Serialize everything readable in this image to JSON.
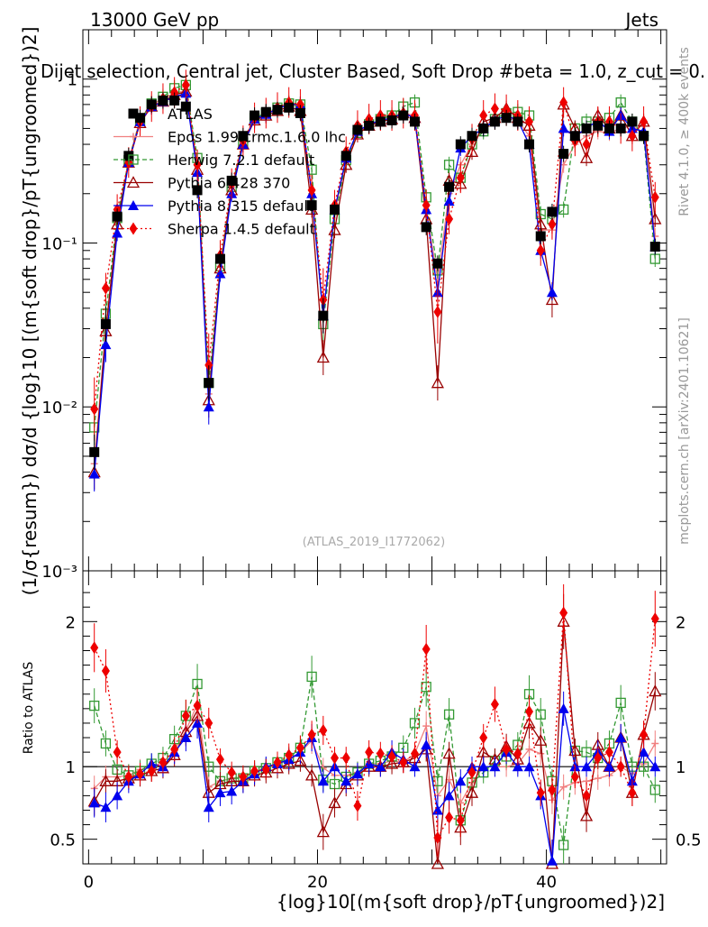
{
  "header": {
    "energy": "13000 GeV pp",
    "category": "Jets",
    "selection_title": "Dijet selection, Central jet, Cluster Based, Soft Drop #beta = 1.0, z_cut = 0.",
    "watermark": "(ATLAS_2019_I1772062)",
    "rivet_tag": "Rivet 4.1.0, ≥ 400k events",
    "site_tag": "mcplots.cern.ch [arXiv:2401.10621]"
  },
  "colors": {
    "atlas": "#000000",
    "epos": "#f08080",
    "herwig": "#339933",
    "pythia6": "#990000",
    "pythia8": "#0000ee",
    "sherpa": "#ee0000"
  },
  "chart_data": [
    {
      "type": "line",
      "title": "Dijet selection, Central jet, Cluster Based, Soft Drop β = 1.0, z_cut = 0.",
      "xlabel": "{log}10[(m^{soft drop}/p_T^{ungroomed})^2]",
      "ylabel": "(1/σ_{resum}) dσ/d {log}10[(m^{soft drop}/p_T^{ungroomed})^2]",
      "xlim": [
        -0.5,
        50.5
      ],
      "ylim": [
        0.001,
        2.0
      ],
      "yscale": "log",
      "yticks": [
        {
          "v": 0.001,
          "label": "10⁻³"
        },
        {
          "v": 0.01,
          "label": "10⁻²"
        },
        {
          "v": 0.1,
          "label": "10⁻¹"
        },
        {
          "v": 1,
          "label": "1"
        }
      ],
      "legend_position": "top-left",
      "x": [
        0.5,
        1.5,
        2.5,
        3.5,
        4.5,
        5.5,
        6.5,
        7.5,
        8.5,
        9.5,
        10.5,
        11.5,
        12.5,
        13.5,
        14.5,
        15.5,
        16.5,
        17.5,
        18.5,
        19.5,
        20.5,
        21.5,
        22.5,
        23.5,
        24.5,
        25.5,
        26.5,
        27.5,
        28.5,
        29.5,
        30.5,
        31.5,
        32.5,
        33.5,
        34.5,
        35.5,
        36.5,
        37.5,
        38.5,
        39.5,
        40.5,
        41.5,
        42.5,
        43.5,
        44.5,
        45.5,
        46.5,
        47.5,
        48.5,
        49.5
      ],
      "series": [
        {
          "name": "ATLAS",
          "style": "square-filled",
          "values": [
            0.0053,
            0.032,
            0.145,
            0.34,
            0.58,
            0.7,
            0.74,
            0.74,
            0.68,
            0.21,
            0.014,
            0.08,
            0.24,
            0.45,
            0.6,
            0.63,
            0.65,
            0.67,
            0.62,
            0.17,
            0.036,
            0.16,
            0.34,
            0.49,
            0.52,
            0.55,
            0.56,
            0.6,
            0.55,
            0.125,
            0.075,
            0.22,
            0.4,
            0.45,
            0.5,
            0.55,
            0.58,
            0.55,
            0.4,
            0.11,
            0.155,
            0.35,
            0.45,
            0.5,
            0.52,
            0.5,
            0.5,
            0.55,
            0.45,
            0.095
          ]
        },
        {
          "name": "Epos 1.99.crmc.1.6.0 lhc",
          "style": "open-cross",
          "values": [
            0.0045,
            0.03,
            0.135,
            0.32,
            0.57,
            0.7,
            0.76,
            0.82,
            0.85,
            0.3,
            0.012,
            0.072,
            0.22,
            0.42,
            0.58,
            0.62,
            0.66,
            0.7,
            0.68,
            0.2,
            0.036,
            0.15,
            0.32,
            0.47,
            0.53,
            0.56,
            0.58,
            0.62,
            0.6,
            0.16,
            0.06,
            0.2,
            0.3,
            0.4,
            0.5,
            0.55,
            0.58,
            0.56,
            0.45,
            0.12,
            0.12,
            0.3,
            0.4,
            0.45,
            0.48,
            0.47,
            0.5,
            0.52,
            0.46,
            0.11
          ]
        },
        {
          "name": "Herwig 7.2.1 default",
          "style": "open-square",
          "values": [
            0.0075,
            0.037,
            0.142,
            0.32,
            0.56,
            0.71,
            0.78,
            0.88,
            0.92,
            0.33,
            0.014,
            0.072,
            0.22,
            0.41,
            0.58,
            0.62,
            0.67,
            0.71,
            0.7,
            0.28,
            0.032,
            0.14,
            0.32,
            0.47,
            0.53,
            0.57,
            0.6,
            0.68,
            0.72,
            0.19,
            0.068,
            0.3,
            0.25,
            0.4,
            0.48,
            0.57,
            0.62,
            0.63,
            0.6,
            0.15,
            0.14,
            0.16,
            0.5,
            0.55,
            0.55,
            0.58,
            0.72,
            0.55,
            0.45,
            0.08
          ]
        },
        {
          "name": "Pythia 6.428 370",
          "style": "open-triangle",
          "values": [
            0.004,
            0.029,
            0.13,
            0.31,
            0.54,
            0.68,
            0.73,
            0.8,
            0.84,
            0.28,
            0.011,
            0.07,
            0.21,
            0.4,
            0.56,
            0.6,
            0.64,
            0.68,
            0.64,
            0.16,
            0.02,
            0.12,
            0.3,
            0.46,
            0.52,
            0.55,
            0.57,
            0.62,
            0.58,
            0.14,
            0.014,
            0.24,
            0.23,
            0.36,
            0.55,
            0.58,
            0.66,
            0.58,
            0.52,
            0.13,
            0.045,
            0.7,
            0.5,
            0.33,
            0.6,
            0.5,
            0.6,
            0.45,
            0.55,
            0.14
          ]
        },
        {
          "name": "Pythia 8.315 default",
          "style": "filled-triangle",
          "values": [
            0.0039,
            0.024,
            0.115,
            0.31,
            0.55,
            0.68,
            0.73,
            0.78,
            0.82,
            0.27,
            0.01,
            0.065,
            0.2,
            0.4,
            0.57,
            0.61,
            0.66,
            0.7,
            0.7,
            0.2,
            0.036,
            0.16,
            0.33,
            0.48,
            0.53,
            0.56,
            0.58,
            0.62,
            0.58,
            0.16,
            0.05,
            0.18,
            0.38,
            0.45,
            0.5,
            0.56,
            0.6,
            0.56,
            0.4,
            0.09,
            0.05,
            0.5,
            0.45,
            0.5,
            0.56,
            0.48,
            0.6,
            0.5,
            0.48,
            0.095
          ]
        },
        {
          "name": "Sherpa 1.4.5 default",
          "style": "filled-diamond",
          "values": [
            0.0097,
            0.053,
            0.16,
            0.31,
            0.55,
            0.68,
            0.76,
            0.83,
            0.92,
            0.3,
            0.018,
            0.084,
            0.23,
            0.42,
            0.58,
            0.62,
            0.67,
            0.72,
            0.7,
            0.21,
            0.045,
            0.17,
            0.36,
            0.52,
            0.57,
            0.6,
            0.6,
            0.62,
            0.6,
            0.17,
            0.038,
            0.14,
            0.25,
            0.43,
            0.6,
            0.66,
            0.65,
            0.6,
            0.55,
            0.09,
            0.13,
            0.72,
            0.42,
            0.4,
            0.55,
            0.55,
            0.5,
            0.45,
            0.55,
            0.19
          ]
        }
      ]
    },
    {
      "type": "line",
      "title": "",
      "xlabel": "{log}10[(m^{soft drop}/p_T^{ungroomed})^2]",
      "ylabel": "Ratio to ATLAS",
      "xlim": [
        -0.5,
        50.5
      ],
      "ylim": [
        0.33,
        2.35
      ],
      "xticks": [
        0,
        20,
        40
      ],
      "yticks": [
        0.5,
        1,
        2
      ],
      "reference_line": 1,
      "x": [
        0.5,
        1.5,
        2.5,
        3.5,
        4.5,
        5.5,
        6.5,
        7.5,
        8.5,
        9.5,
        10.5,
        11.5,
        12.5,
        13.5,
        14.5,
        15.5,
        16.5,
        17.5,
        18.5,
        19.5,
        20.5,
        21.5,
        22.5,
        23.5,
        24.5,
        25.5,
        26.5,
        27.5,
        28.5,
        29.5,
        30.5,
        31.5,
        32.5,
        33.5,
        34.5,
        35.5,
        36.5,
        37.5,
        38.5,
        39.5,
        40.5,
        41.5,
        42.5,
        43.5,
        44.5,
        45.5,
        46.5,
        47.5,
        48.5,
        49.5
      ],
      "series": [
        {
          "name": "Epos 1.99.crmc.1.6.0 lhc",
          "values": [
            0.85,
            0.93,
            0.93,
            0.94,
            0.98,
            1.0,
            1.03,
            1.11,
            1.25,
            1.43,
            0.86,
            0.9,
            0.92,
            0.93,
            0.97,
            0.98,
            1.02,
            1.04,
            1.1,
            1.18,
            0.99,
            0.94,
            0.94,
            0.96,
            1.02,
            1.02,
            1.04,
            1.03,
            1.09,
            1.28,
            0.8,
            0.91,
            0.75,
            0.89,
            1.0,
            1.0,
            1.0,
            1.02,
            1.12,
            1.09,
            0.77,
            0.86,
            0.89,
            0.9,
            0.92,
            0.94,
            1.0,
            0.95,
            1.02,
            1.16
          ]
        },
        {
          "name": "Herwig 7.2.1 default",
          "values": [
            1.42,
            1.16,
            0.98,
            0.94,
            0.97,
            1.02,
            1.06,
            1.19,
            1.35,
            1.57,
            1.0,
            0.9,
            0.92,
            0.92,
            0.97,
            0.99,
            1.03,
            1.06,
            1.13,
            1.62,
            0.91,
            0.88,
            0.93,
            0.96,
            1.02,
            1.04,
            1.07,
            1.13,
            1.3,
            1.55,
            0.9,
            1.36,
            0.63,
            0.89,
            0.96,
            1.04,
            1.07,
            1.15,
            1.5,
            1.36,
            0.9,
            0.46,
            1.11,
            1.1,
            1.06,
            1.16,
            1.44,
            1.0,
            1.0,
            0.84
          ]
        },
        {
          "name": "Pythia 6.428 370",
          "values": [
            0.76,
            0.9,
            0.9,
            0.92,
            0.94,
            0.97,
            0.99,
            1.08,
            1.24,
            1.35,
            0.82,
            0.88,
            0.9,
            0.9,
            0.94,
            0.96,
            0.99,
            1.02,
            1.04,
            0.94,
            0.55,
            0.75,
            0.88,
            0.94,
            1.0,
            1.0,
            1.02,
            1.03,
            1.06,
            1.12,
            0.19,
            1.09,
            0.58,
            0.82,
            1.1,
            1.05,
            1.14,
            1.05,
            1.3,
            1.18,
            0.29,
            2.0,
            1.11,
            0.66,
            1.15,
            1.0,
            1.2,
            0.82,
            1.22,
            1.52
          ]
        },
        {
          "name": "Pythia 8.315 default",
          "values": [
            0.75,
            0.72,
            0.8,
            0.9,
            0.95,
            1.02,
            1.0,
            1.1,
            1.2,
            1.3,
            0.72,
            0.82,
            0.83,
            0.9,
            0.95,
            1.0,
            1.02,
            1.05,
            1.1,
            1.2,
            0.9,
            1.0,
            0.9,
            0.95,
            1.02,
            1.0,
            1.1,
            1.05,
            1.0,
            1.15,
            0.7,
            0.8,
            0.9,
            1.0,
            1.0,
            1.0,
            1.1,
            1.0,
            1.0,
            0.8,
            0.35,
            1.4,
            1.0,
            1.0,
            1.1,
            1.0,
            1.2,
            0.9,
            1.1,
            1.0
          ]
        },
        {
          "name": "Sherpa 1.4.5 default",
          "values": [
            1.82,
            1.66,
            1.1,
            0.93,
            0.95,
            0.97,
            1.03,
            1.12,
            1.35,
            1.42,
            1.3,
            1.05,
            0.96,
            0.93,
            0.97,
            0.98,
            1.03,
            1.08,
            1.13,
            1.22,
            1.25,
            1.06,
            1.06,
            0.73,
            1.1,
            1.09,
            1.07,
            1.03,
            1.09,
            1.81,
            0.51,
            0.65,
            0.63,
            0.96,
            1.2,
            1.43,
            1.12,
            1.09,
            1.38,
            0.82,
            0.84,
            2.06,
            0.93,
            0.8,
            1.06,
            1.1,
            1.0,
            0.82,
            1.22,
            2.02
          ]
        }
      ]
    }
  ]
}
